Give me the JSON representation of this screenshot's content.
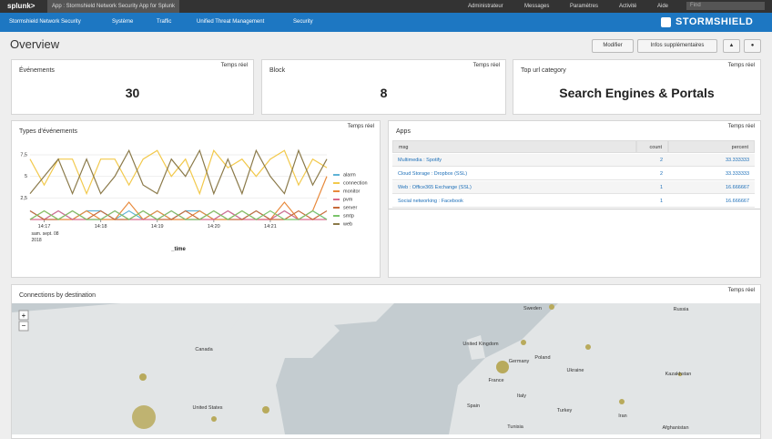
{
  "topbar": {
    "logo": "splunk>",
    "app": "App : Stormshield Network Security App for Splunk",
    "menu": [
      "Administrateur",
      "Messages",
      "Paramètres",
      "Activité",
      "Aide"
    ],
    "search": "Find"
  },
  "navbar": {
    "items": [
      "Stormshield Network Security",
      "Système",
      "Traffic",
      "Unified Threat Management",
      "Security"
    ],
    "brand": "STORMSHIELD"
  },
  "header": {
    "title": "Overview",
    "buttons": [
      "Modifier",
      "Infos supplémentaires"
    ]
  },
  "panels": {
    "events": {
      "title": "Événements",
      "badge": "Temps réel",
      "value": 30
    },
    "block": {
      "title": "Block",
      "badge": "Temps réel",
      "value": 8
    },
    "top_url": {
      "title": "Top url category",
      "badge": "Temps réel",
      "value": "Search Engines & Portals"
    },
    "types": {
      "title": "Types d'événements",
      "badge": "Temps réel"
    },
    "apps": {
      "title": "Apps",
      "badge": "Temps réel",
      "columns": [
        "msg",
        "count",
        "percent"
      ],
      "rows": [
        [
          "Multimedia : Spotify",
          2,
          33.333333
        ],
        [
          "Cloud Storage : Dropbox (SSL)",
          2,
          33.333333
        ],
        [
          "Web : Office365 Exchange (SSL)",
          1,
          16.666667
        ],
        [
          "Social networking : Facebook",
          1,
          16.666667
        ]
      ]
    },
    "map": {
      "title": "Connections by destination",
      "badge": "Temps réel",
      "labels": [
        "Canada",
        "United States",
        "Sweden",
        "Russia",
        "United Kingdom",
        "Germany",
        "Poland",
        "Ukraine",
        "France",
        "Kazakhstan",
        "Italy",
        "Spain",
        "Turkey",
        "Iran",
        "Afghanistan",
        "Tunisia"
      ]
    }
  },
  "chart_data": {
    "type": "line",
    "x_label": "_time",
    "x_sublabel": [
      "sam. sept. 08",
      "2018"
    ],
    "categories": [
      null,
      "14:17",
      null,
      null,
      null,
      "14:18",
      null,
      null,
      null,
      "14:19",
      null,
      null,
      null,
      "14:20",
      null,
      null,
      null,
      "14:21",
      null,
      null,
      null,
      null
    ],
    "ylim": [
      0,
      9.5
    ],
    "yticks": [
      {
        "value": 2.5,
        "label": "2,5"
      },
      5,
      {
        "value": 7.5,
        "label": "7,5"
      }
    ],
    "series": [
      {
        "name": "alarm",
        "color": "#5fb3d6",
        "values": [
          1,
          0,
          1,
          0,
          1,
          1,
          0,
          1,
          0,
          1,
          0,
          1,
          1,
          0,
          1,
          0,
          1,
          0,
          1,
          0,
          1,
          0
        ]
      },
      {
        "name": "connection",
        "color": "#f2c94c",
        "values": [
          7,
          4,
          7,
          7,
          3,
          7,
          7,
          4,
          7,
          8,
          5,
          7,
          3,
          8,
          6,
          7,
          5,
          7,
          8,
          4,
          7,
          6
        ]
      },
      {
        "name": "monitor",
        "color": "#e8893b",
        "values": [
          0,
          1,
          0,
          0,
          1,
          0,
          0,
          2,
          0,
          1,
          0,
          0,
          1,
          0,
          0,
          1,
          0,
          0,
          2,
          0,
          1,
          5
        ]
      },
      {
        "name": "pvm",
        "color": "#d96a8c",
        "values": [
          0,
          0,
          1,
          0,
          0,
          0,
          1,
          0,
          0,
          0,
          1,
          0,
          0,
          0,
          1,
          0,
          0,
          0,
          1,
          0,
          0,
          0
        ]
      },
      {
        "name": "server",
        "color": "#c76a3a",
        "values": [
          1,
          0,
          0,
          1,
          0,
          1,
          0,
          0,
          1,
          0,
          0,
          1,
          0,
          1,
          0,
          0,
          1,
          0,
          0,
          1,
          0,
          1
        ]
      },
      {
        "name": "smtp",
        "color": "#7ac46b",
        "values": [
          0,
          1,
          0,
          1,
          0,
          0,
          1,
          0,
          1,
          0,
          1,
          0,
          0,
          1,
          0,
          1,
          0,
          1,
          0,
          0,
          1,
          0
        ]
      },
      {
        "name": "web",
        "color": "#8b7a4a",
        "values": [
          3,
          5,
          7,
          3,
          7,
          3,
          5,
          8,
          4,
          3,
          7,
          5,
          8,
          3,
          7,
          3,
          8,
          5,
          3,
          8,
          4,
          7
        ]
      }
    ]
  }
}
